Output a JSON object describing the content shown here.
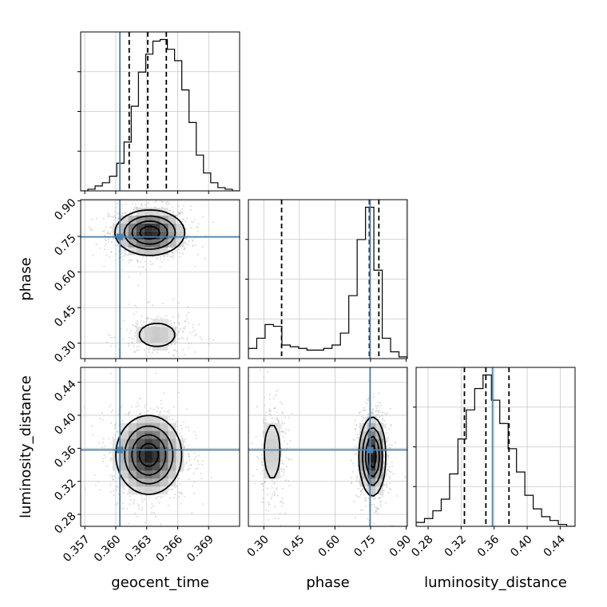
{
  "chart_data": {
    "type": "corner",
    "parameters": [
      "geocent_time",
      "phase",
      "luminosity_distance"
    ],
    "axis_labels": {
      "geocent_time": "geocent_time",
      "phase": "phase",
      "luminosity_distance": "luminosity_distance"
    },
    "ranges": {
      "geocent_time": [
        0.3566,
        0.372
      ],
      "phase": [
        0.235,
        0.905
      ],
      "luminosity_distance": [
        0.2655,
        0.458
      ]
    },
    "ticks": {
      "geocent_time": [
        {
          "value": 0.357,
          "label": "0.357"
        },
        {
          "value": 0.36,
          "label": "0.360"
        },
        {
          "value": 0.363,
          "label": "0.363"
        },
        {
          "value": 0.366,
          "label": "0.366"
        },
        {
          "value": 0.369,
          "label": "0.369"
        }
      ],
      "phase": [
        {
          "value": 0.3,
          "label": "0.30"
        },
        {
          "value": 0.45,
          "label": "0.45"
        },
        {
          "value": 0.6,
          "label": "0.60"
        },
        {
          "value": 0.75,
          "label": "0.75"
        },
        {
          "value": 0.9,
          "label": "0.90"
        }
      ],
      "luminosity_distance": [
        {
          "value": 0.28,
          "label": "0.28"
        },
        {
          "value": 0.32,
          "label": "0.32"
        },
        {
          "value": 0.36,
          "label": "0.36"
        },
        {
          "value": 0.4,
          "label": "0.40"
        },
        {
          "value": 0.44,
          "label": "0.44"
        }
      ]
    },
    "truths": {
      "geocent_time": 0.3604,
      "phase": 0.748,
      "luminosity_distance": 0.358
    },
    "quantiles": {
      "geocent_time": [
        0.3613,
        0.3631,
        0.3649
      ],
      "phase": [
        0.375,
        0.745,
        0.785
      ],
      "luminosity_distance": [
        0.324,
        0.35,
        0.378
      ]
    },
    "histograms": {
      "geocent_time": {
        "range": [
          0.3566,
          0.372
        ],
        "counts": [
          0,
          1,
          3,
          5,
          9,
          17,
          30,
          52,
          73,
          84,
          92,
          93,
          87,
          80,
          62,
          42,
          22,
          11,
          5,
          2,
          1,
          0
        ]
      },
      "phase": {
        "range": [
          0.235,
          0.905
        ],
        "counts": [
          6,
          12,
          20,
          19,
          8,
          7,
          6,
          5,
          5,
          6,
          8,
          15,
          37,
          70,
          89,
          52,
          12,
          4,
          1
        ]
      },
      "luminosity_distance": {
        "range": [
          0.2655,
          0.458
        ],
        "counts": [
          2,
          4,
          8,
          14,
          27,
          45,
          60,
          71,
          78,
          65,
          53,
          40,
          28,
          16,
          9,
          5,
          3,
          1,
          0
        ]
      }
    },
    "density_2d": [
      {
        "x": "geocent_time",
        "y": "phase",
        "modes": [
          {
            "center": [
              0.3633,
              0.766
            ],
            "sigma": [
              0.0017,
              0.048
            ],
            "weight": 0.8
          },
          {
            "center": [
              0.364,
              0.335
            ],
            "sigma": [
              0.0016,
              0.045
            ],
            "weight": 0.2
          }
        ]
      },
      {
        "x": "geocent_time",
        "y": "luminosity_distance",
        "modes": [
          {
            "center": [
              0.3632,
              0.352
            ],
            "sigma": [
              0.0016,
              0.024
            ],
            "weight": 1.0
          }
        ]
      },
      {
        "x": "phase",
        "y": "luminosity_distance",
        "modes": [
          {
            "center": [
              0.758,
              0.35
            ],
            "sigma": [
              0.028,
              0.024
            ],
            "weight": 0.8
          },
          {
            "center": [
              0.335,
              0.356
            ],
            "sigma": [
              0.03,
              0.03
            ],
            "weight": 0.2
          }
        ]
      }
    ],
    "colors": {
      "truth": "#4682b4",
      "hist": "#000000",
      "points": "#b0b0b0",
      "grid": "#c8c8c8"
    },
    "grid": true
  }
}
